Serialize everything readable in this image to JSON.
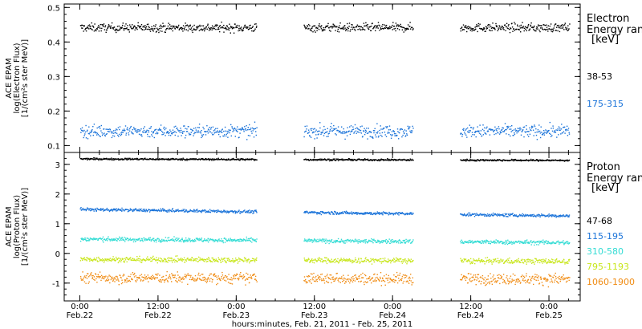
{
  "chart_data": [
    {
      "type": "scatter",
      "panel": "electron",
      "ylabel": [
        "ACE EPAM",
        "log(Electron Flux)",
        "[1/(cm²s ster MeV)]"
      ],
      "ylim": [
        0.08,
        0.51
      ],
      "yticks": [
        0.1,
        0.2,
        0.3,
        0.4,
        0.5
      ],
      "ytick_labels": [
        "0.1",
        "0.2",
        "0.3",
        "0.4",
        "0.5"
      ],
      "legend_title": [
        "Electron",
        "Energy ran",
        "[keV]"
      ],
      "legend_placement": "right",
      "grid": false,
      "series": [
        {
          "name": "38-53",
          "color": "#000000",
          "mean": 0.443,
          "spread": 0.012
        },
        {
          "name": "175-315",
          "color": "#1a73d9",
          "mean": 0.143,
          "spread": 0.018
        }
      ],
      "data_segments_days": [
        [
          0.0,
          1.13
        ],
        [
          1.43,
          2.13
        ],
        [
          2.43,
          3.13
        ]
      ]
    },
    {
      "type": "scatter",
      "panel": "proton",
      "ylabel": [
        "ACE EPAM",
        "log(Proton Flux)",
        "[1/(cm²s ster MeV)]"
      ],
      "ylim": [
        -1.6,
        3.4
      ],
      "yticks": [
        -1,
        0,
        1,
        2,
        3
      ],
      "ytick_labels": [
        "-1",
        "0",
        "1",
        "2",
        "3"
      ],
      "legend_title": [
        "Proton",
        "Energy ran",
        "[keV]"
      ],
      "legend_placement": "right",
      "grid": false,
      "series": [
        {
          "name": "47-68",
          "color": "#000000",
          "start": 3.2,
          "end": 3.15,
          "spread": 0.03
        },
        {
          "name": "115-195",
          "color": "#1a73d9",
          "start": 1.5,
          "end": 1.28,
          "spread": 0.05
        },
        {
          "name": "310-580",
          "color": "#33dcd4",
          "start": 0.5,
          "end": 0.38,
          "spread": 0.07
        },
        {
          "name": "795-1193",
          "color": "#c8e61c",
          "start": -0.18,
          "end": -0.25,
          "spread": 0.09
        },
        {
          "name": "1060-1900",
          "color": "#f08c14",
          "start": -0.8,
          "end": -0.85,
          "spread": 0.18
        }
      ],
      "data_segments_days": [
        [
          0.0,
          1.13
        ],
        [
          1.43,
          2.13
        ],
        [
          2.43,
          3.13
        ]
      ]
    }
  ],
  "x_axis": {
    "range_days": [
      -0.1,
      3.2
    ],
    "major_ticks": [
      0,
      0.5,
      1,
      1.5,
      2,
      2.5,
      3
    ],
    "tick_labels": [
      [
        "0:00",
        "Feb.22"
      ],
      [
        "12:00",
        "Feb.22"
      ],
      [
        "0:00",
        "Feb.23"
      ],
      [
        "12:00",
        "Feb.23"
      ],
      [
        "0:00",
        "Feb.24"
      ],
      [
        "12:00",
        "Feb.24"
      ],
      [
        "0:00",
        "Feb.25"
      ]
    ],
    "minor_step_days": 0.125,
    "xlabel": "hours:minutes, Feb. 21, 2011 - Feb. 25, 2011"
  }
}
